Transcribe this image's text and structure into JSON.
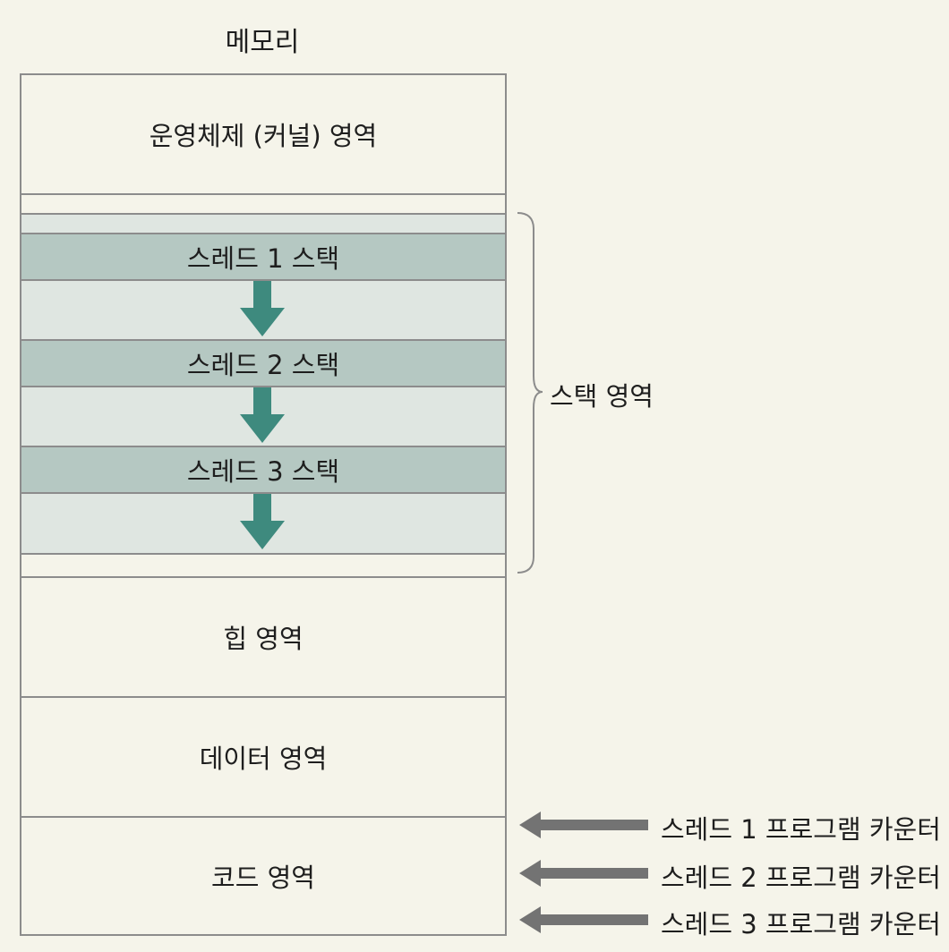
{
  "title": "메모리",
  "regions": {
    "kernel": "운영체제 (커널) 영역",
    "heap": "힙 영역",
    "data": "데이터 영역",
    "code": "코드 영역"
  },
  "stacks": [
    {
      "label": "스레드 1 스택"
    },
    {
      "label": "스레드 2 스택"
    },
    {
      "label": "스레드 3 스택"
    }
  ],
  "stack_region_label": "스택 영역",
  "program_counters": [
    {
      "label": "스레드 1 프로그램 카운터"
    },
    {
      "label": "스레드 2 프로그램 카운터"
    },
    {
      "label": "스레드 3 프로그램 카운터"
    }
  ],
  "colors": {
    "background": "#f5f4ea",
    "stack_area": "#dfe6e1",
    "stack_band": "#b5c8c2",
    "down_arrow": "#3e8a7e",
    "pc_arrow": "#737373",
    "border": "#8c8c8c"
  }
}
